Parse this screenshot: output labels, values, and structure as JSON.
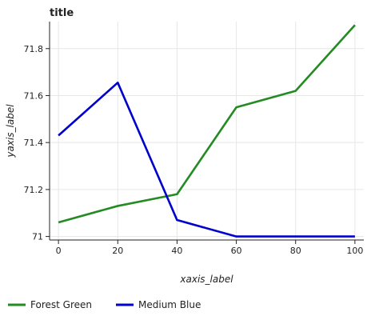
{
  "chart_data": {
    "type": "line",
    "title": "title",
    "xlabel": "xaxis_label",
    "ylabel": "yaxis_label",
    "xlim": [
      -3,
      103
    ],
    "ylim": [
      70.985,
      71.915
    ],
    "x_ticks": [
      0,
      20,
      40,
      60,
      80,
      100
    ],
    "x_tick_labels": [
      "0",
      "20",
      "40",
      "60",
      "80",
      "100"
    ],
    "y_ticks": [
      71.0,
      71.2,
      71.4,
      71.6,
      71.8
    ],
    "y_tick_labels": [
      "71",
      "71.2",
      "71.4",
      "71.6",
      "71.8"
    ],
    "grid": true,
    "legend_position": "bottom",
    "series": [
      {
        "name": "Forest Green",
        "color": "#228b22",
        "x": [
          0,
          20,
          40,
          60,
          80,
          100
        ],
        "y": [
          71.06,
          71.13,
          71.18,
          71.55,
          71.62,
          71.9
        ]
      },
      {
        "name": "Medium Blue",
        "color": "#0000cd",
        "x": [
          0,
          20,
          40,
          60,
          80,
          100
        ],
        "y": [
          71.43,
          71.655,
          71.07,
          71.0,
          71.0,
          71.0
        ]
      }
    ]
  }
}
